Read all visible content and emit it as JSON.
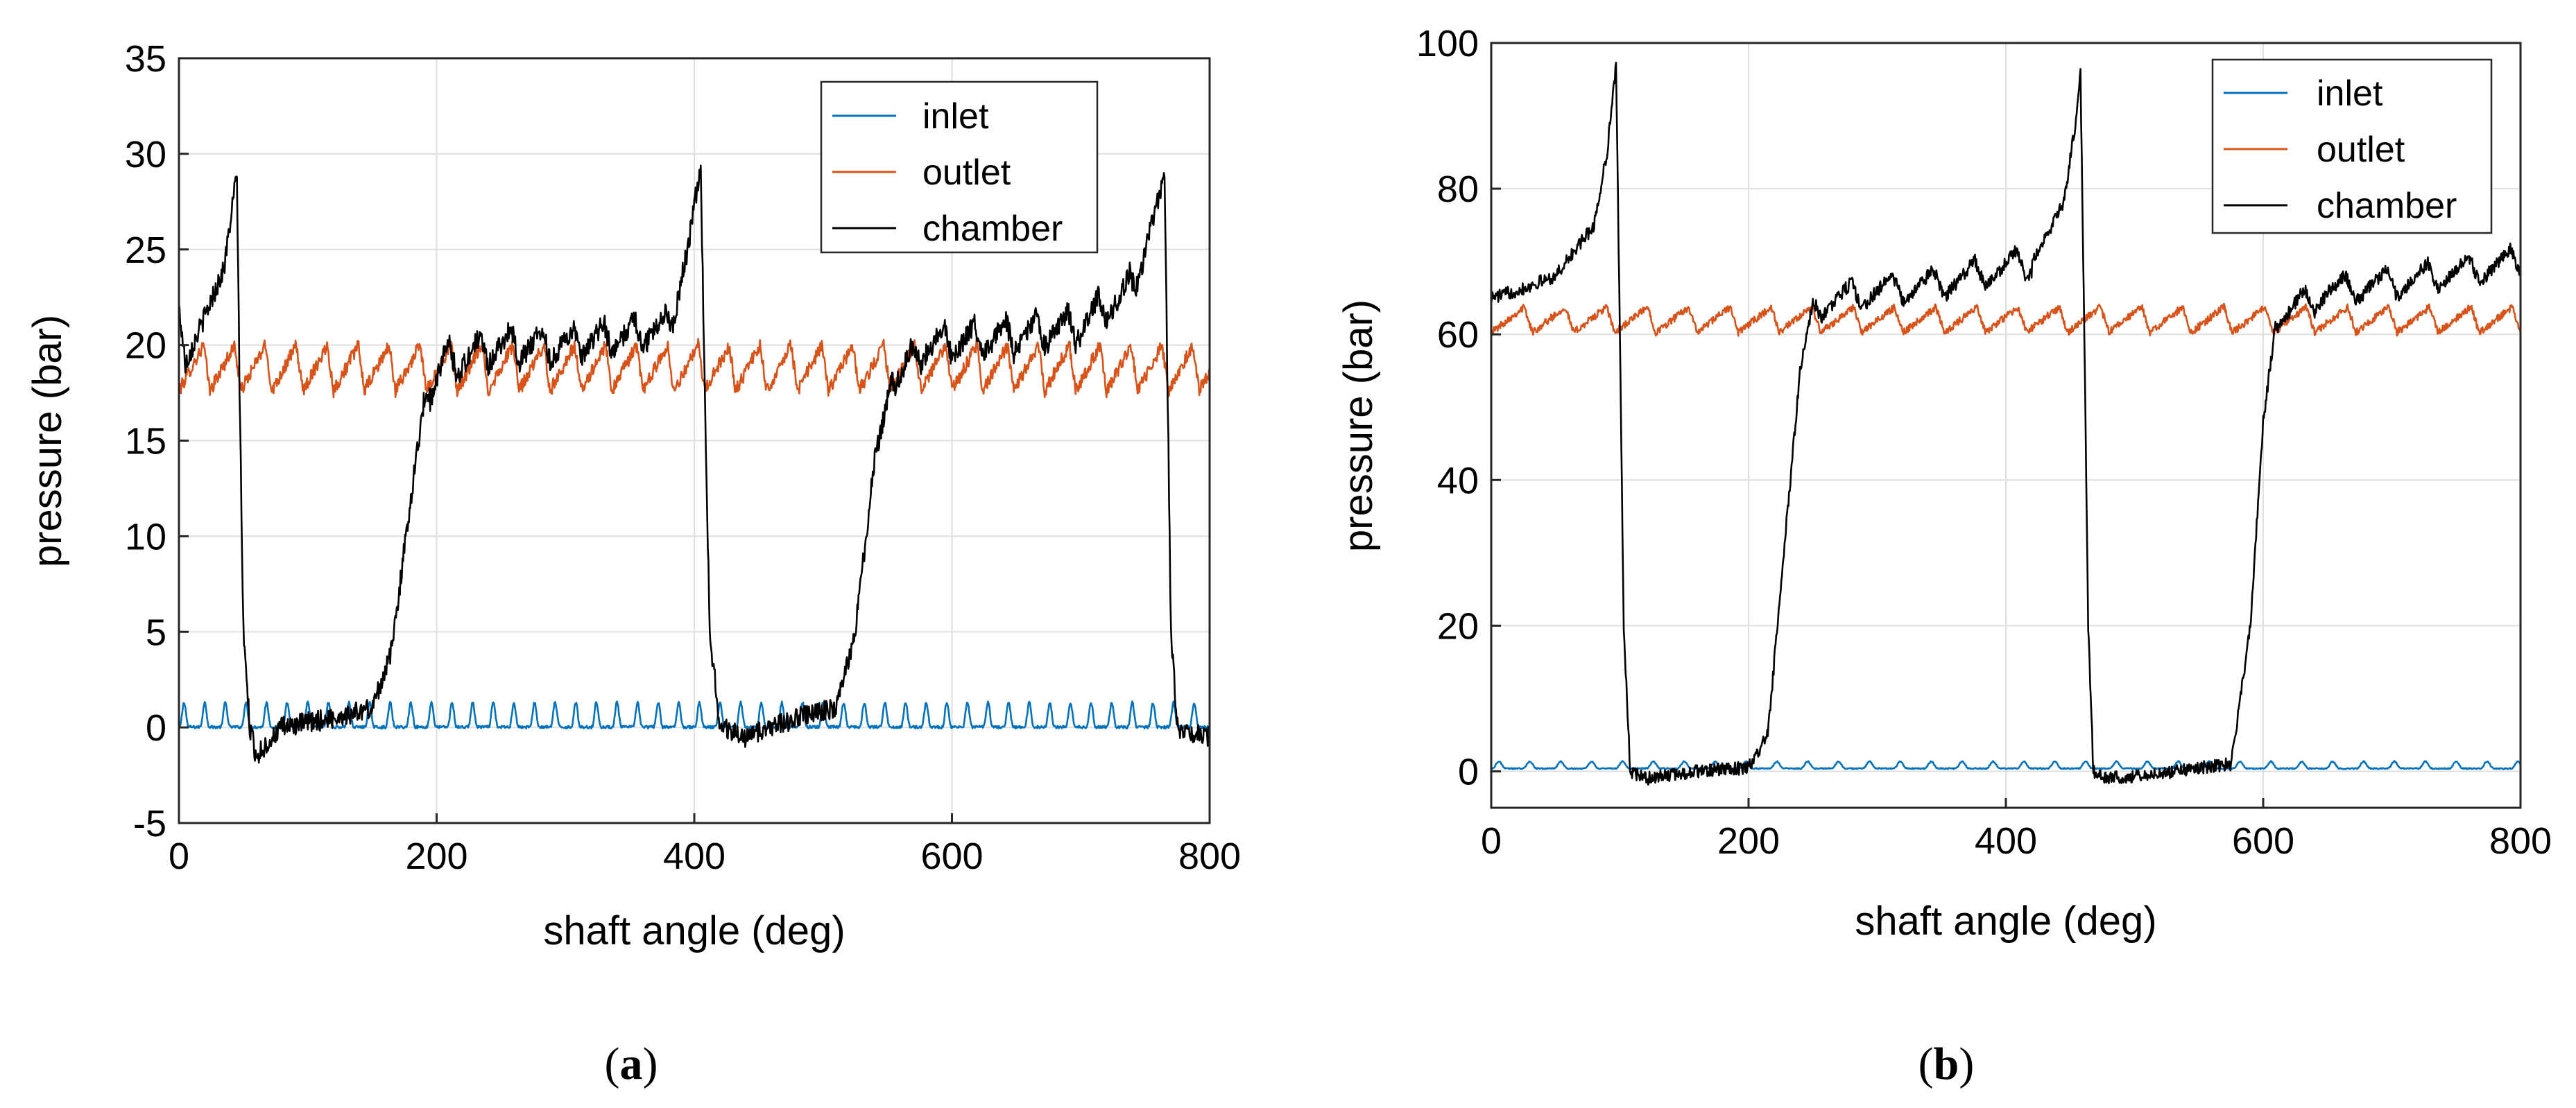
{
  "chart_data": [
    {
      "panel": "a",
      "caption_letter": "a",
      "type": "line",
      "title": "",
      "xlabel": "shaft angle (deg)",
      "ylabel": "pressure (bar)",
      "xlim": [
        0,
        800
      ],
      "ylim": [
        -5,
        35
      ],
      "xticks": [
        0,
        200,
        400,
        600,
        800
      ],
      "yticks": [
        -5,
        0,
        5,
        10,
        15,
        20,
        25,
        30,
        35
      ],
      "grid": true,
      "legend_position": "top-right",
      "legend": [
        "inlet",
        "outlet",
        "chamber"
      ],
      "series": [
        {
          "name": "inlet",
          "color": "#0072BD",
          "model": {
            "kind": "ripple",
            "base": 0.3,
            "amp": 0.8,
            "period": 16,
            "noise": 0.15
          }
        },
        {
          "name": "outlet",
          "color": "#D95319",
          "model": {
            "kind": "sawtooth",
            "base": 18.8,
            "amp": 2.4,
            "period": 24,
            "noise": 0.35
          }
        },
        {
          "name": "chamber",
          "color": "#000000",
          "model": {
            "kind": "chamber",
            "noise": 0.55,
            "points": [
              [
                0,
                22
              ],
              [
                5,
                19
              ],
              [
                20,
                21.5
              ],
              [
                35,
                24
              ],
              [
                45,
                29
              ],
              [
                47,
                18
              ],
              [
                50,
                5
              ],
              [
                55,
                0
              ],
              [
                60,
                -1.5
              ],
              [
                80,
                0
              ],
              [
                120,
                0.5
              ],
              [
                150,
                1
              ],
              [
                165,
                4
              ],
              [
                180,
                12
              ],
              [
                190,
                17
              ],
              [
                205,
                19
              ],
              [
                250,
                20
              ],
              [
                300,
                20
              ],
              [
                350,
                20.5
              ],
              [
                380,
                21
              ],
              [
                395,
                25
              ],
              [
                405,
                29.5
              ],
              [
                408,
                18
              ],
              [
                412,
                5
              ],
              [
                420,
                0
              ],
              [
                440,
                -0.5
              ],
              [
                480,
                0.5
              ],
              [
                510,
                1
              ],
              [
                525,
                5
              ],
              [
                540,
                14
              ],
              [
                553,
                18
              ],
              [
                580,
                20
              ],
              [
                650,
                20.5
              ],
              [
                700,
                21
              ],
              [
                740,
                23
              ],
              [
                760,
                27.5
              ],
              [
                765,
                29
              ],
              [
                770,
                5
              ],
              [
                775,
                0
              ],
              [
                800,
                -0.5
              ]
            ],
            "ripple": {
              "amp": 1.8,
              "period": 24,
              "start": 195,
              "end": 390,
              "start2": 555,
              "end2": 755
            }
          }
        }
      ]
    },
    {
      "panel": "b",
      "caption_letter": "b",
      "type": "line",
      "title": "",
      "xlabel": "shaft angle (deg)",
      "ylabel": "pressure (bar)",
      "xlim": [
        0,
        800
      ],
      "ylim": [
        -5,
        100
      ],
      "xticks": [
        0,
        200,
        400,
        600,
        800
      ],
      "yticks": [
        0,
        20,
        40,
        60,
        80,
        100
      ],
      "grid": true,
      "legend_position": "top-right",
      "legend": [
        "inlet",
        "outlet",
        "chamber"
      ],
      "series": [
        {
          "name": "inlet",
          "color": "#0072BD",
          "model": {
            "kind": "ripple",
            "base": 0.6,
            "amp": 0.6,
            "period": 24,
            "noise": 0.15
          }
        },
        {
          "name": "outlet",
          "color": "#D95319",
          "model": {
            "kind": "sawtooth",
            "base": 62,
            "amp": 3.5,
            "period": 32,
            "noise": 0.5
          }
        },
        {
          "name": "chamber",
          "color": "#000000",
          "model": {
            "kind": "chamber",
            "noise": 0.9,
            "points": [
              [
                0,
                65
              ],
              [
                20,
                66
              ],
              [
                50,
                68
              ],
              [
                80,
                75
              ],
              [
                90,
                85
              ],
              [
                97,
                97
              ],
              [
                100,
                60
              ],
              [
                103,
                20
              ],
              [
                108,
                0
              ],
              [
                120,
                -1
              ],
              [
                160,
                0
              ],
              [
                200,
                0.5
              ],
              [
                215,
                5
              ],
              [
                230,
                35
              ],
              [
                240,
                55
              ],
              [
                250,
                64
              ],
              [
                300,
                66
              ],
              [
                350,
                67
              ],
              [
                420,
                70
              ],
              [
                445,
                78
              ],
              [
                455,
                90
              ],
              [
                458,
                96
              ],
              [
                461,
                60
              ],
              [
                464,
                20
              ],
              [
                468,
                0
              ],
              [
                480,
                -1
              ],
              [
                530,
                0
              ],
              [
                575,
                1
              ],
              [
                590,
                20
              ],
              [
                600,
                48
              ],
              [
                610,
                62
              ],
              [
                650,
                66
              ],
              [
                700,
                67
              ],
              [
                800,
                70
              ]
            ],
            "ripple": {
              "amp": 4,
              "period": 32,
              "start": 250,
              "end": 420,
              "start2": 610,
              "end2": 800
            }
          }
        }
      ]
    }
  ]
}
